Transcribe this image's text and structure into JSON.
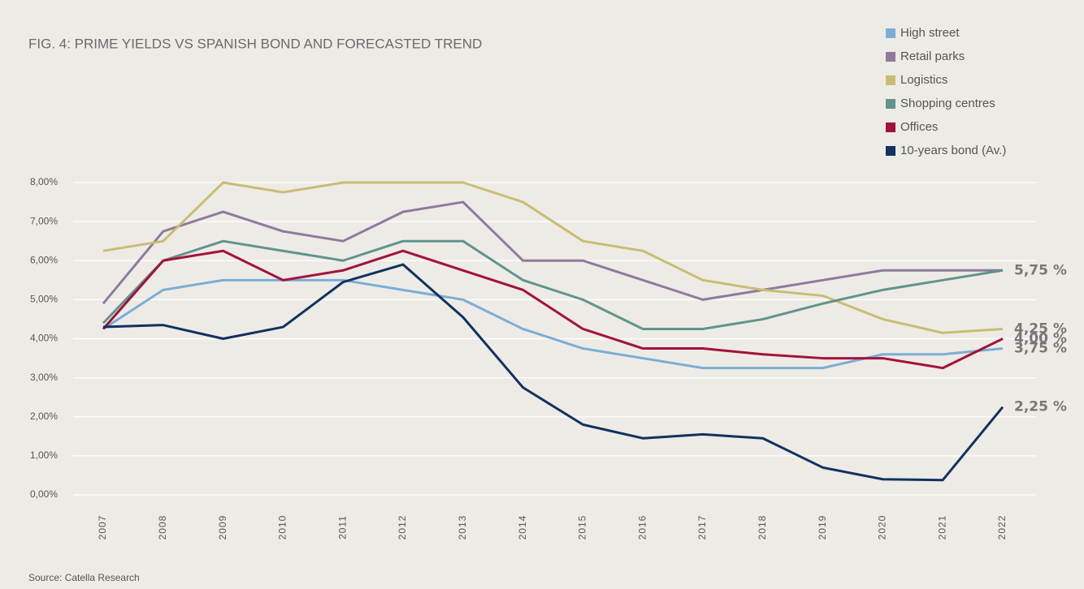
{
  "chart_data": {
    "type": "line",
    "title": "FIG. 4: PRIME YIELDS VS SPANISH BOND AND FORECASTED TREND",
    "source": "Source: Catella Research",
    "categories": [
      "2007",
      "2008",
      "2009",
      "2010",
      "2011",
      "2012",
      "2013",
      "2014",
      "2015",
      "2016",
      "2017",
      "2018",
      "2019",
      "2020",
      "2021",
      "2022"
    ],
    "series": [
      {
        "name": "High street",
        "color": "#7aaed6",
        "values": [
          4.25,
          5.25,
          5.5,
          5.5,
          5.5,
          5.25,
          5.0,
          4.25,
          3.75,
          3.5,
          3.25,
          3.25,
          3.25,
          3.6,
          3.6,
          3.75
        ]
      },
      {
        "name": "Retail parks",
        "color": "#8e7a9e",
        "values": [
          4.9,
          6.75,
          7.25,
          6.75,
          6.5,
          7.25,
          7.5,
          6.0,
          6.0,
          5.5,
          5.0,
          5.25,
          5.5,
          5.75,
          5.75,
          5.75
        ]
      },
      {
        "name": "Logistics",
        "color": "#c8bd72",
        "values": [
          6.25,
          6.5,
          8.0,
          7.75,
          8.0,
          8.0,
          8.0,
          7.5,
          6.5,
          6.25,
          5.5,
          5.25,
          5.1,
          4.5,
          4.15,
          4.25
        ]
      },
      {
        "name": "Shopping centres",
        "color": "#5f958b",
        "values": [
          4.4,
          6.0,
          6.5,
          6.25,
          6.0,
          6.5,
          6.5,
          5.5,
          5.0,
          4.25,
          4.25,
          4.5,
          4.9,
          5.25,
          5.5,
          5.75
        ]
      },
      {
        "name": "Offices",
        "color": "#a3123b",
        "values": [
          4.25,
          6.0,
          6.25,
          5.5,
          5.75,
          6.25,
          5.75,
          5.25,
          4.25,
          3.75,
          3.75,
          3.6,
          3.5,
          3.5,
          3.25,
          4.0
        ]
      },
      {
        "name": "10-years bond (Av.)",
        "color": "#0f3361",
        "values": [
          4.3,
          4.35,
          4.0,
          4.3,
          5.45,
          5.9,
          4.55,
          2.75,
          1.8,
          1.45,
          1.55,
          1.45,
          0.7,
          0.4,
          0.38,
          2.25
        ]
      }
    ],
    "ylim": [
      0,
      8
    ],
    "yticks": [
      {
        "value": 0,
        "label": "0,00%"
      },
      {
        "value": 1,
        "label": "1,00%"
      },
      {
        "value": 2,
        "label": "2,00%"
      },
      {
        "value": 3,
        "label": "3,00%"
      },
      {
        "value": 4,
        "label": "4,00%"
      },
      {
        "value": 5,
        "label": "5,00%"
      },
      {
        "value": 6,
        "label": "6,00%"
      },
      {
        "value": 7,
        "label": "7,00%"
      },
      {
        "value": 8,
        "label": "8,00%"
      }
    ],
    "grid": true,
    "legend": "upper right",
    "annotations": [
      {
        "text": "5,75 %",
        "y": 5.75
      },
      {
        "text": "4,25 %",
        "y": 4.25
      },
      {
        "text": "4,00 %",
        "y": 4.0
      },
      {
        "text": "3,75 %",
        "y": 3.75
      },
      {
        "text": "2,25 %",
        "y": 2.25
      }
    ]
  }
}
